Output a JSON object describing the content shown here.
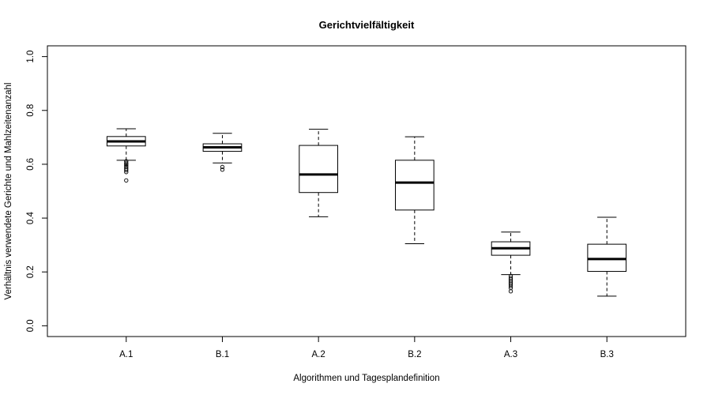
{
  "chart_data": {
    "type": "boxplot",
    "title": "Gerichtvielfältigkeit",
    "xlabel": "Algorithmen und Tagesplandefinition",
    "ylabel": "Verhältnis verwendete Gerichte und Mahlzeitenanzahl",
    "ylim": [
      -0.04,
      1.04
    ],
    "yticks": [
      0.0,
      0.2,
      0.4,
      0.6,
      0.8,
      1.0
    ],
    "ytick_labels": [
      "0.0",
      "0.2",
      "0.4",
      "0.6",
      "0.8",
      "1.0"
    ],
    "grid": false,
    "categories": [
      "A.1",
      "B.1",
      "A.2",
      "B.2",
      "A.3",
      "B.3"
    ],
    "boxes": [
      {
        "label": "A.1",
        "whisker_low": 0.615,
        "q1": 0.668,
        "median": 0.685,
        "q3": 0.703,
        "whisker_high": 0.732,
        "outliers": [
          0.611,
          0.605,
          0.6,
          0.595,
          0.59,
          0.584,
          0.578,
          0.571,
          0.54
        ]
      },
      {
        "label": "B.1",
        "whisker_low": 0.605,
        "q1": 0.648,
        "median": 0.663,
        "q3": 0.676,
        "whisker_high": 0.715,
        "outliers": [
          0.59,
          0.58
        ]
      },
      {
        "label": "A.2",
        "whisker_low": 0.405,
        "q1": 0.495,
        "median": 0.562,
        "q3": 0.67,
        "whisker_high": 0.73,
        "outliers": []
      },
      {
        "label": "B.2",
        "whisker_low": 0.305,
        "q1": 0.43,
        "median": 0.532,
        "q3": 0.615,
        "whisker_high": 0.702,
        "outliers": []
      },
      {
        "label": "A.3",
        "whisker_low": 0.19,
        "q1": 0.262,
        "median": 0.288,
        "q3": 0.312,
        "whisker_high": 0.348,
        "outliers": [
          0.185,
          0.178,
          0.172,
          0.166,
          0.16,
          0.154,
          0.147,
          0.14,
          0.128
        ]
      },
      {
        "label": "B.3",
        "whisker_low": 0.11,
        "q1": 0.202,
        "median": 0.248,
        "q3": 0.303,
        "whisker_high": 0.403,
        "outliers": []
      }
    ]
  }
}
